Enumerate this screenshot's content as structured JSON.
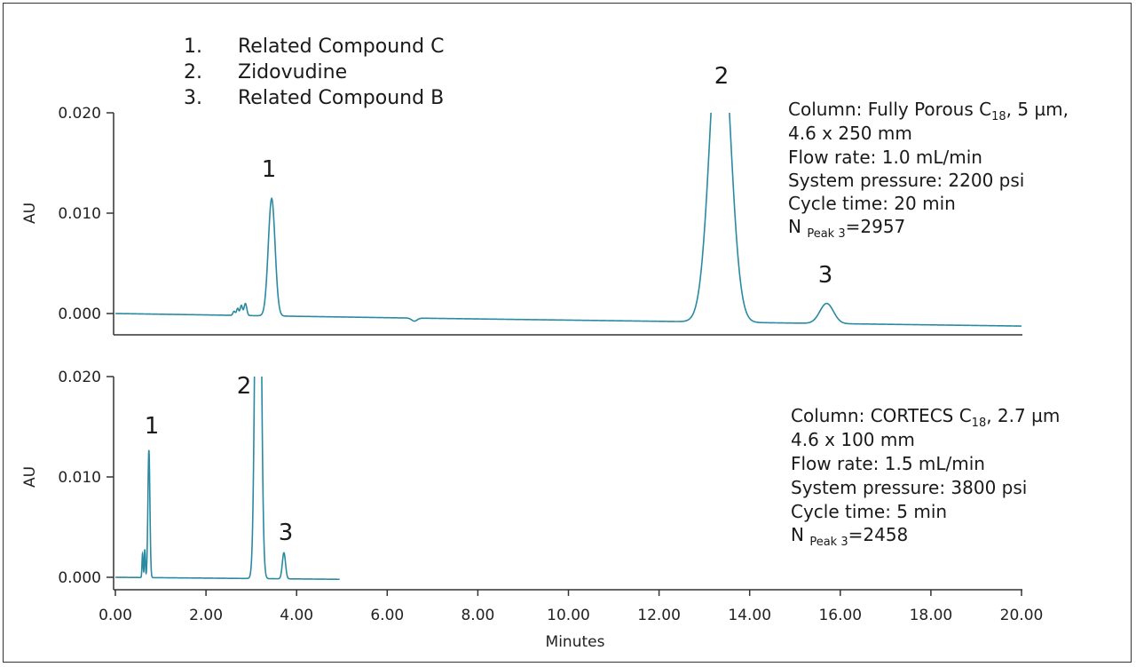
{
  "chart_data": {
    "type": "line",
    "line_color": "#2a8aa0",
    "legend": [
      {
        "num": "1.",
        "name": "Related Compound C"
      },
      {
        "num": "2.",
        "name": "Zidovudine"
      },
      {
        "num": "3.",
        "name": "Related Compound B"
      }
    ],
    "xlabel": "Minutes",
    "xlim": [
      0,
      20
    ],
    "x_ticks": [
      "0.00",
      "2.00",
      "4.00",
      "6.00",
      "8.00",
      "10.00",
      "12.00",
      "14.00",
      "16.00",
      "18.00",
      "20.00"
    ],
    "panels": [
      {
        "ylabel": "AU",
        "ylim": [
          -0.0002,
          0.02
        ],
        "y_ticks": [
          "0.020",
          "0.010",
          "0.000"
        ],
        "peak_labels": [
          {
            "label": "1",
            "x": 3.4,
            "y": 0.0137
          },
          {
            "label": "2",
            "x": 13.35,
            "y": 0.0238
          },
          {
            "label": "3",
            "x": 15.7,
            "y": 0.0033
          }
        ],
        "info": {
          "column_prefix": "Column: Fully Porous C",
          "column_sub": "18",
          "column_suffix": ", 5 µm,",
          "dimensions": "4.6 x 250 mm",
          "flow_rate": "Flow rate: 1.0 mL/min",
          "pressure": "System pressure: 2200 psi",
          "cycle_time": "Cycle time: 20 min",
          "n_prefix": "N ",
          "n_sub": "Peak 3",
          "n_suffix": "=2957"
        },
        "trace": {
          "x_range": [
            0,
            20
          ],
          "baseline": [
            [
              0,
              0.0
            ],
            [
              6.5,
              -0.00045
            ],
            [
              20,
              -0.00125
            ]
          ],
          "dip": {
            "x": 6.6,
            "w": 0.06,
            "h": -0.0003
          },
          "peaks": [
            {
              "x": 2.62,
              "w": 0.025,
              "h": 0.0004
            },
            {
              "x": 2.7,
              "w": 0.025,
              "h": 0.0007
            },
            {
              "x": 2.78,
              "w": 0.025,
              "h": 0.001
            },
            {
              "x": 2.87,
              "w": 0.03,
              "h": 0.0012
            },
            {
              "x": 3.45,
              "w": 0.075,
              "h": 0.0117
            },
            {
              "x": 13.35,
              "w": 0.22,
              "h": 0.032
            },
            {
              "x": 15.7,
              "w": 0.15,
              "h": 0.002
            }
          ]
        }
      },
      {
        "ylabel": "AU",
        "ylim": [
          -0.0002,
          0.02
        ],
        "y_ticks": [
          "0.020",
          "0.010",
          "0.000"
        ],
        "peak_labels": [
          {
            "label": "1",
            "x": 0.75,
            "y": 0.0143
          },
          {
            "label": "2",
            "x": 2.85,
            "y": 0.018
          },
          {
            "label": "3",
            "x": 3.72,
            "y": 0.0032
          }
        ],
        "info": {
          "column_prefix": "Column: CORTECS C",
          "column_sub": "18",
          "column_suffix": ", 2.7 µm",
          "dimensions": "4.6 x 100 mm",
          "flow_rate": "Flow rate: 1.5 mL/min",
          "pressure": "System pressure: 3800 psi",
          "cycle_time": "Cycle time: 5 min",
          "n_prefix": "N ",
          "n_sub": "Peak 3",
          "n_suffix": "=2458"
        },
        "trace": {
          "x_range": [
            0,
            4.95
          ],
          "baseline": [
            [
              0,
              0.0
            ],
            [
              4.95,
              -0.0002
            ]
          ],
          "peaks": [
            {
              "x": 0.6,
              "w": 0.012,
              "h": 0.0024
            },
            {
              "x": 0.65,
              "w": 0.012,
              "h": 0.0028
            },
            {
              "x": 0.74,
              "w": 0.022,
              "h": 0.0127
            },
            {
              "x": 3.15,
              "w": 0.055,
              "h": 0.06
            },
            {
              "x": 3.72,
              "w": 0.035,
              "h": 0.0026
            }
          ]
        }
      }
    ]
  }
}
